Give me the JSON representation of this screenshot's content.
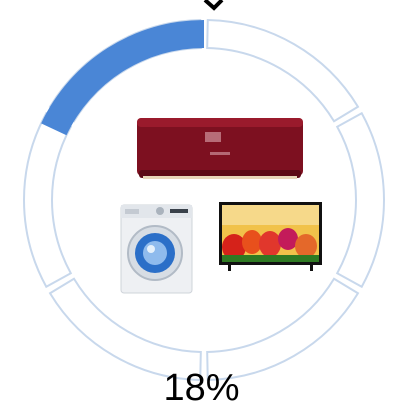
{
  "chart_data": {
    "type": "pie",
    "subtype": "donut-progress",
    "value_percent": 18,
    "label": "18%",
    "track_segments": 6,
    "grid": false,
    "colors": {
      "fill": "#4a86d6",
      "track_stroke": "#c8d8ec",
      "text": "#000000"
    },
    "icons": [
      "air-conditioner-icon",
      "washing-machine-icon",
      "television-icon"
    ]
  }
}
